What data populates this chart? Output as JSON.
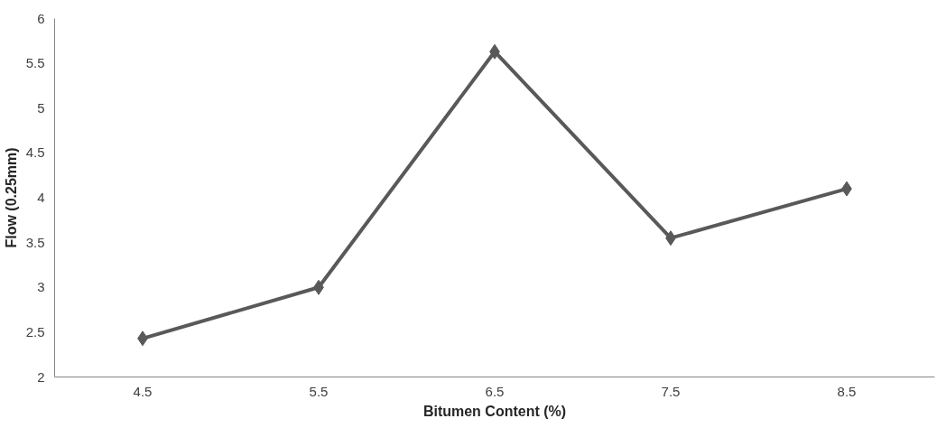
{
  "chart_data": {
    "type": "line",
    "xlabel": "Bitumen Content (%)",
    "ylabel": "Flow (0.25mm)",
    "categories": [
      "4.5",
      "5.5",
      "6.5",
      "7.5",
      "8.5"
    ],
    "series": [
      {
        "color": "#595959",
        "values": [
          2.43,
          3.0,
          5.63,
          3.55,
          4.1
        ]
      }
    ],
    "ylim": [
      2,
      6
    ],
    "yticks": [
      2,
      2.5,
      3,
      3.5,
      4,
      4.5,
      5,
      5.5,
      6
    ],
    "marker": "diamond",
    "grid": false
  }
}
